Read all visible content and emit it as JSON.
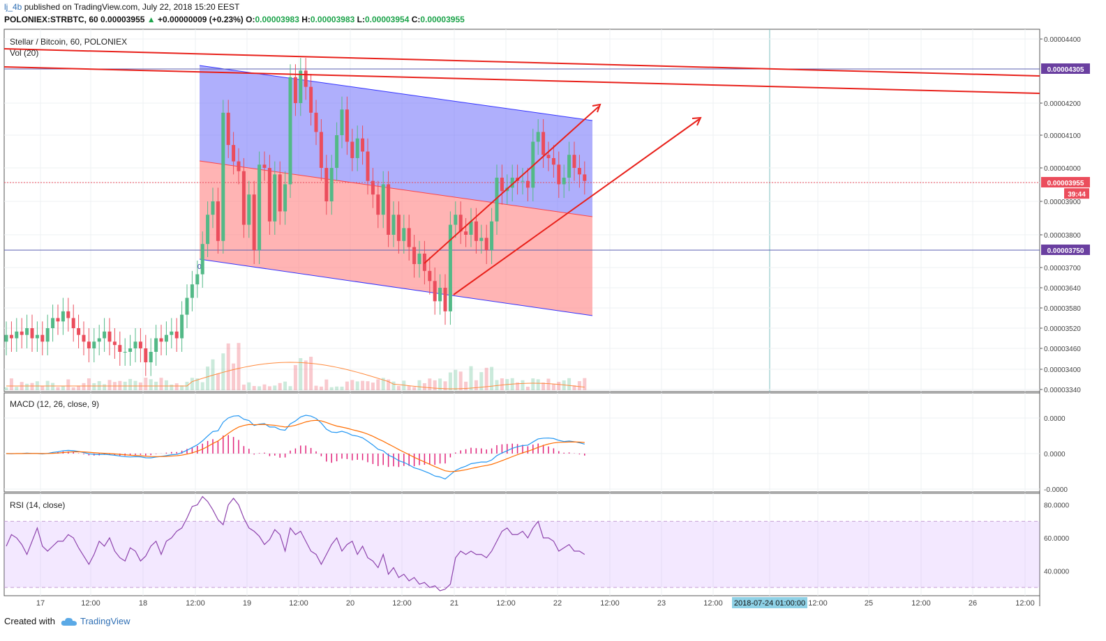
{
  "header": {
    "user": "lj_4b",
    "published": " published on TradingView.com, July 22, 2018 15:20 EEST",
    "symbol": "POLONIEX:STRBTC, 60",
    "last": "0.00003955",
    "change": "+0.00000009 (+0.23%)",
    "o_label": "O:",
    "o": "0.00003983",
    "h_label": "H:",
    "h": "0.00003983",
    "l_label": "L:",
    "l": "0.00003954",
    "c_label": "C:",
    "c": "0.00003955"
  },
  "footer": {
    "created_with": "Created with",
    "brand": "TradingView"
  },
  "colors": {
    "up": "#53b987",
    "down": "#eb4d5c",
    "macd": "#2196f3",
    "signal": "#ff6d00",
    "rsi": "#8e44ad",
    "channel_top": "#8080ff",
    "channel_bottom": "#ff9a9a",
    "trend": "#e8201a",
    "badge": "#6a3fa0"
  },
  "chart_data": [
    {
      "type": "candlestick",
      "title": "Stellar / Bitcoin, 60, POLONIEX",
      "volume_label": "Vol (20)",
      "ylim": [
        3.32e-05,
        4.45e-05
      ],
      "y_ticks": [
        "0.00004400",
        "0.00004305",
        "0.00004200",
        "0.00004100",
        "0.00004000",
        "0.00003955",
        "0.00003900",
        "0.00003800",
        "0.00003750",
        "0.00003700",
        "0.00003640",
        "0.00003580",
        "0.00003520",
        "0.00003460",
        "0.00003400",
        "0.00003340"
      ],
      "y_tick_values": [
        4.4e-05,
        4.305e-05,
        4.2e-05,
        4.1e-05,
        4e-05,
        3.955e-05,
        3.9e-05,
        3.8e-05,
        3.75e-05,
        3.7e-05,
        3.64e-05,
        3.58e-05,
        3.52e-05,
        3.46e-05,
        3.4e-05,
        3.34e-05
      ],
      "x_ticks": [
        "17",
        "12:00",
        "18",
        "12:00",
        "19",
        "12:00",
        "20",
        "12:00",
        "21",
        "12:00",
        "22",
        "12:00",
        "23",
        "12:00",
        "2018-07-24 01:00:00",
        "12:00",
        "25",
        "12:00",
        "26",
        "12:00"
      ],
      "price_badges": [
        {
          "label": "0.00004305",
          "value": 4.305e-05,
          "color": "#6a3fa0"
        },
        {
          "label": "0.00003955",
          "value": 3.955e-05,
          "color": "#eb4d5c"
        },
        {
          "label": "39:44",
          "value": 3.922e-05,
          "color": "#eb4d5c"
        },
        {
          "label": "0.00003750",
          "value": 3.75e-05,
          "color": "#6a3fa0"
        }
      ],
      "channel_marker": "0",
      "candles_close": [
        3.5e-05,
        3.49e-05,
        3.51e-05,
        3.5e-05,
        3.52e-05,
        3.49e-05,
        3.5e-05,
        3.48e-05,
        3.52e-05,
        3.55e-05,
        3.54e-05,
        3.57e-05,
        3.55e-05,
        3.52e-05,
        3.5e-05,
        3.48e-05,
        3.46e-05,
        3.48e-05,
        3.49e-05,
        3.51e-05,
        3.48e-05,
        3.47e-05,
        3.45e-05,
        3.45e-05,
        3.46e-05,
        3.48e-05,
        3.46e-05,
        3.42e-05,
        3.45e-05,
        3.49e-05,
        3.48e-05,
        3.5e-05,
        3.51e-05,
        3.49e-05,
        3.56e-05,
        3.61e-05,
        3.65e-05,
        3.68e-05,
        3.77e-05,
        3.86e-05,
        3.9e-05,
        3.78e-05,
        4.17e-05,
        4.07e-05,
        4.02e-05,
        3.99e-05,
        3.83e-05,
        3.92e-05,
        3.75e-05,
        4.01e-05,
        4e-05,
        3.84e-05,
        3.98e-05,
        3.87e-05,
        3.95e-05,
        4.28e-05,
        4.2e-05,
        4.3e-05,
        4.25e-05,
        4.17e-05,
        4.11e-05,
        4e-05,
        3.9e-05,
        4e-05,
        4.1e-05,
        4.18e-05,
        4.08e-05,
        4.03e-05,
        4.09e-05,
        4.05e-05,
        3.96e-05,
        3.92e-05,
        3.86e-05,
        3.95e-05,
        3.8e-05,
        3.86e-05,
        3.78e-05,
        3.82e-05,
        3.76e-05,
        3.71e-05,
        3.74e-05,
        3.69e-05,
        3.66e-05,
        3.6e-05,
        3.64e-05,
        3.57e-05,
        3.83e-05,
        3.86e-05,
        3.81e-05,
        3.8e-05,
        3.84e-05,
        3.78e-05,
        3.79e-05,
        3.75e-05,
        3.84e-05,
        3.97e-05,
        3.93e-05,
        3.94e-05,
        3.97e-05,
        3.96e-05,
        3.96e-05,
        3.94e-05,
        4.08e-05,
        4.11e-05,
        4.04e-05,
        4.03e-05,
        4.01e-05,
        3.95e-05,
        3.97e-05,
        4.04e-05,
        4e-05,
        3.98e-05,
        3.96e-05
      ],
      "candles_open": [
        3.48e-05,
        3.5e-05,
        3.49e-05,
        3.51e-05,
        3.5e-05,
        3.52e-05,
        3.49e-05,
        3.5e-05,
        3.48e-05,
        3.52e-05,
        3.55e-05,
        3.54e-05,
        3.57e-05,
        3.55e-05,
        3.52e-05,
        3.5e-05,
        3.48e-05,
        3.46e-05,
        3.48e-05,
        3.49e-05,
        3.51e-05,
        3.48e-05,
        3.47e-05,
        3.45e-05,
        3.45e-05,
        3.46e-05,
        3.48e-05,
        3.46e-05,
        3.42e-05,
        3.45e-05,
        3.49e-05,
        3.48e-05,
        3.5e-05,
        3.51e-05,
        3.49e-05,
        3.56e-05,
        3.61e-05,
        3.65e-05,
        3.68e-05,
        3.77e-05,
        3.86e-05,
        3.9e-05,
        3.78e-05,
        4.17e-05,
        4.07e-05,
        4.02e-05,
        3.99e-05,
        3.83e-05,
        3.92e-05,
        3.75e-05,
        4.01e-05,
        4e-05,
        3.84e-05,
        3.98e-05,
        3.87e-05,
        3.95e-05,
        4.28e-05,
        4.2e-05,
        4.3e-05,
        4.25e-05,
        4.17e-05,
        4.11e-05,
        4e-05,
        3.9e-05,
        4e-05,
        4.1e-05,
        4.18e-05,
        4.08e-05,
        4.03e-05,
        4.09e-05,
        4.05e-05,
        3.96e-05,
        3.92e-05,
        3.86e-05,
        3.95e-05,
        3.8e-05,
        3.86e-05,
        3.78e-05,
        3.82e-05,
        3.76e-05,
        3.71e-05,
        3.74e-05,
        3.69e-05,
        3.66e-05,
        3.6e-05,
        3.64e-05,
        3.57e-05,
        3.83e-05,
        3.86e-05,
        3.81e-05,
        3.8e-05,
        3.84e-05,
        3.78e-05,
        3.79e-05,
        3.75e-05,
        3.84e-05,
        3.97e-05,
        3.93e-05,
        3.94e-05,
        3.97e-05,
        3.96e-05,
        3.96e-05,
        3.94e-05,
        4.08e-05,
        4.11e-05,
        4.04e-05,
        4.03e-05,
        4.01e-05,
        3.95e-05,
        3.97e-05,
        4.04e-05,
        4e-05,
        3.98e-05
      ]
    },
    {
      "type": "line",
      "title": "MACD (12, 26, close, 9)",
      "y_ticks": [
        "0.0000",
        "0.0000",
        "-0.0000"
      ],
      "series": []
    },
    {
      "type": "line",
      "title": "RSI (14, close)",
      "ylim": [
        25,
        87
      ],
      "y_ticks": [
        "80.0000",
        "60.0000",
        "40.0000"
      ],
      "y_tick_values": [
        80,
        60,
        40
      ],
      "band": [
        30,
        70
      ],
      "values": [
        55,
        62,
        60,
        56,
        50,
        58,
        66,
        55,
        52,
        55,
        58,
        58,
        62,
        60,
        54,
        49,
        44,
        50,
        58,
        55,
        60,
        52,
        48,
        46,
        54,
        52,
        46,
        49,
        55,
        58,
        50,
        58,
        60,
        64,
        66,
        72,
        79,
        80,
        85,
        82,
        77,
        71,
        68,
        80,
        84,
        80,
        72,
        66,
        64,
        61,
        56,
        59,
        65,
        62,
        52,
        66,
        62,
        64,
        58,
        52,
        50,
        44,
        50,
        56,
        60,
        52,
        56,
        58,
        50,
        55,
        48,
        46,
        42,
        50,
        38,
        42,
        36,
        38,
        34,
        36,
        32,
        33,
        30,
        31,
        28,
        29,
        32,
        48,
        52,
        50,
        52,
        50,
        50,
        48,
        52,
        58,
        64,
        66,
        62,
        62,
        64,
        60,
        66,
        70,
        60,
        60,
        58,
        52,
        54,
        56,
        52,
        52,
        50
      ]
    }
  ]
}
